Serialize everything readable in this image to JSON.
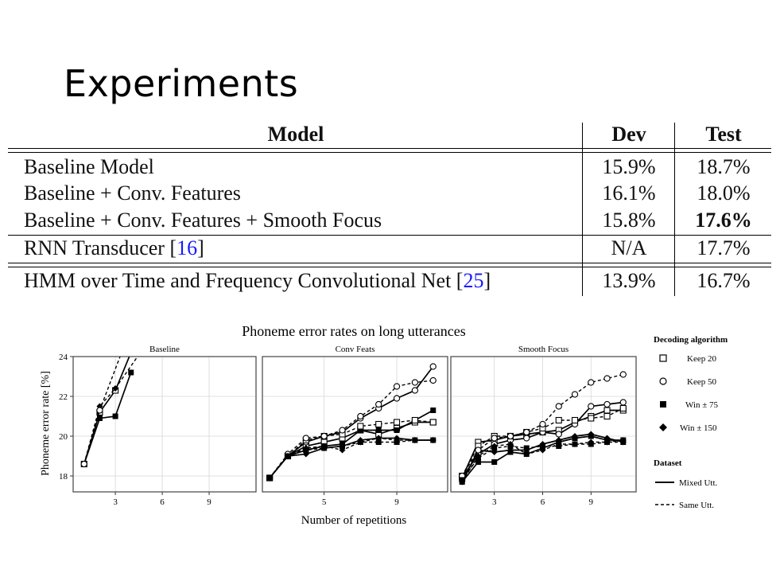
{
  "slide": {
    "title": "Experiments"
  },
  "table": {
    "headers": {
      "model": "Model",
      "dev": "Dev",
      "test": "Test"
    },
    "rows": [
      {
        "model": "Baseline Model",
        "dev": "15.9%",
        "test": "18.7%"
      },
      {
        "model": "Baseline + Conv. Features",
        "dev": "16.1%",
        "test": "18.0%"
      },
      {
        "model": "Baseline + Conv. Features + Smooth Focus",
        "dev": "15.8%",
        "test": "17.6%"
      },
      {
        "model": "RNN Transducer [",
        "cite": "16",
        "close": "]",
        "dev": "N/A",
        "test": "17.7%"
      },
      {
        "model": "HMM over Time and Frequency Convolutional Net [",
        "cite": "25",
        "close": "]",
        "dev": "13.9%",
        "test": "16.7%"
      }
    ]
  },
  "figure": {
    "title": "Phoneme error rates on long utterances",
    "xlabel": "Number of repetitions",
    "ylabel": "Phoneme error rate [%]",
    "legend": {
      "decoding_title": "Decoding algorithm",
      "decoding": [
        "Keep 20",
        "Keep 50",
        "Win ± 75",
        "Win ± 150"
      ],
      "dataset_title": "Dataset",
      "dataset": [
        "Mixed Utt.",
        "Same Utt."
      ]
    }
  },
  "chart_data": [
    {
      "type": "line",
      "title": "Baseline",
      "xlabel": "Number of repetitions",
      "ylabel": "Phoneme error rate [%]",
      "xticks": [
        3,
        6,
        9
      ],
      "yticks": [
        18,
        20,
        22,
        24
      ],
      "xlim": [
        0.3,
        12
      ],
      "ylim": [
        17.2,
        24
      ],
      "grid": true,
      "series": [
        {
          "name": "Keep 20 / Mixed Utt.",
          "marker": "square-open",
          "dash": false,
          "x": [
            1,
            2,
            3,
            4
          ],
          "y": [
            18.6,
            21.2,
            22.3,
            24.2
          ]
        },
        {
          "name": "Win ± 75 / Mixed Utt.",
          "marker": "square",
          "dash": false,
          "x": [
            1,
            2,
            3,
            4
          ],
          "y": [
            18.6,
            20.9,
            21.0,
            23.2
          ]
        },
        {
          "name": "Win ± 150 / Same Utt.",
          "marker": "diamond",
          "dash": true,
          "x": [
            1,
            2,
            3,
            4.6
          ],
          "y": [
            18.6,
            21.5,
            22.4,
            24.2
          ]
        },
        {
          "name": "Keep 50 / Same Utt.",
          "marker": "circle-open",
          "dash": true,
          "x": [
            1,
            2,
            3.4
          ],
          "y": [
            18.6,
            21.3,
            24.2
          ]
        }
      ]
    },
    {
      "type": "line",
      "title": "Conv Feats",
      "xlabel": "Number of repetitions",
      "ylabel": "Phoneme error rate [%]",
      "xticks": [
        5,
        9
      ],
      "yticks": [
        18,
        20,
        22,
        24
      ],
      "xlim": [
        1.6,
        11.8
      ],
      "ylim": [
        17.2,
        24
      ],
      "grid": true,
      "series": [
        {
          "name": "Keep 20 / Mixed Utt.",
          "marker": "square-open",
          "dash": false,
          "x": [
            2,
            3,
            4,
            5,
            6,
            7,
            8,
            9,
            10,
            11
          ],
          "y": [
            17.9,
            19.0,
            19.5,
            19.7,
            19.9,
            20.3,
            20.1,
            20.4,
            20.7,
            20.7
          ]
        },
        {
          "name": "Keep 50 / Mixed Utt.",
          "marker": "circle-open",
          "dash": false,
          "x": [
            2,
            3,
            4,
            5,
            6,
            7,
            8,
            9,
            10,
            11
          ],
          "y": [
            17.9,
            19.0,
            19.7,
            20.0,
            20.2,
            20.9,
            21.4,
            21.9,
            22.3,
            23.5
          ]
        },
        {
          "name": "Win ± 75 / Mixed Utt.",
          "marker": "square",
          "dash": false,
          "x": [
            2,
            3,
            4,
            5,
            6,
            7,
            8,
            9,
            10,
            11
          ],
          "y": [
            17.9,
            19.0,
            19.3,
            19.5,
            19.6,
            20.3,
            20.3,
            20.3,
            20.8,
            21.3
          ]
        },
        {
          "name": "Win ± 150 / Mixed Utt.",
          "marker": "diamond",
          "dash": false,
          "x": [
            2,
            3,
            4,
            5,
            6,
            7,
            8,
            9,
            10,
            11
          ],
          "y": [
            17.9,
            19.0,
            19.1,
            19.4,
            19.5,
            19.8,
            19.9,
            19.9,
            19.8,
            19.8
          ]
        },
        {
          "name": "Keep 20 / Same Utt.",
          "marker": "square-open",
          "dash": true,
          "x": [
            2,
            3,
            4,
            5,
            6,
            7,
            8,
            9,
            10,
            11
          ],
          "y": [
            17.9,
            19.0,
            19.8,
            20.0,
            20.1,
            20.5,
            20.6,
            20.7,
            20.8,
            20.7
          ]
        },
        {
          "name": "Keep 50 / Same Utt.",
          "marker": "circle-open",
          "dash": true,
          "x": [
            2,
            3,
            4,
            5,
            6,
            7,
            8,
            9,
            10,
            11
          ],
          "y": [
            17.9,
            19.1,
            19.9,
            20.0,
            20.3,
            21.0,
            21.6,
            22.5,
            22.7,
            22.8
          ]
        },
        {
          "name": "Win ± 75 / Same Utt.",
          "marker": "square",
          "dash": true,
          "x": [
            2,
            3,
            4,
            5,
            6,
            7,
            8,
            9,
            10,
            11
          ],
          "y": [
            17.9,
            19.0,
            19.3,
            19.4,
            19.5,
            19.7,
            19.7,
            19.7,
            19.8,
            19.8
          ]
        },
        {
          "name": "Win ± 150 / Same Utt.",
          "marker": "diamond",
          "dash": true,
          "x": [
            2,
            3,
            4,
            5,
            6,
            7,
            8,
            9,
            10,
            11
          ],
          "y": [
            17.9,
            19.0,
            19.4,
            19.5,
            19.3,
            19.7,
            19.9,
            19.8,
            19.8,
            19.8
          ]
        }
      ]
    },
    {
      "type": "line",
      "title": "Smooth Focus",
      "xlabel": "Number of repetitions",
      "ylabel": "Phoneme error rate [%]",
      "xticks": [
        3,
        6,
        9
      ],
      "yticks": [
        18,
        20,
        22,
        24
      ],
      "xlim": [
        0.3,
        11.8
      ],
      "ylim": [
        17.2,
        24
      ],
      "grid": true,
      "series": [
        {
          "name": "Keep 20 / Mixed Utt.",
          "marker": "square-open",
          "dash": false,
          "x": [
            1,
            2,
            3,
            4,
            5,
            6,
            7,
            8,
            9,
            10,
            11
          ],
          "y": [
            17.9,
            19.7,
            19.8,
            20.0,
            20.1,
            20.2,
            20.3,
            20.7,
            21.0,
            21.3,
            21.3
          ]
        },
        {
          "name": "Keep 50 / Mixed Utt.",
          "marker": "circle-open",
          "dash": false,
          "x": [
            1,
            2,
            3,
            4,
            5,
            6,
            7,
            8,
            9,
            10,
            11
          ],
          "y": [
            17.9,
            19.1,
            19.6,
            19.8,
            19.9,
            20.2,
            20.1,
            20.6,
            21.5,
            21.6,
            21.7
          ]
        },
        {
          "name": "Win ± 75 / Mixed Utt.",
          "marker": "square",
          "dash": false,
          "x": [
            1,
            2,
            3,
            4,
            5,
            6,
            7,
            8,
            9,
            10,
            11
          ],
          "y": [
            17.7,
            18.7,
            18.7,
            19.2,
            19.1,
            19.4,
            19.7,
            19.9,
            20.0,
            19.8,
            19.8
          ]
        },
        {
          "name": "Win ± 150 / Mixed Utt.",
          "marker": "diamond",
          "dash": false,
          "x": [
            1,
            2,
            3,
            4,
            5,
            6,
            7,
            8,
            9,
            10,
            11
          ],
          "y": [
            17.7,
            19.3,
            19.2,
            19.3,
            19.3,
            19.6,
            19.8,
            20.0,
            20.1,
            19.9,
            19.7
          ]
        },
        {
          "name": "Keep 20 / Same Utt.",
          "marker": "square-open",
          "dash": true,
          "x": [
            1,
            2,
            3,
            4,
            5,
            6,
            7,
            8,
            9,
            10,
            11
          ],
          "y": [
            18.0,
            19.5,
            20.0,
            20.0,
            20.2,
            20.4,
            20.8,
            20.8,
            20.9,
            21.0,
            21.4
          ]
        },
        {
          "name": "Keep 50 / Same Utt.",
          "marker": "circle-open",
          "dash": true,
          "x": [
            1,
            2,
            3,
            4,
            5,
            6,
            7,
            8,
            9,
            10,
            11
          ],
          "y": [
            18.0,
            19.3,
            19.9,
            20.0,
            20.2,
            20.6,
            21.5,
            22.1,
            22.7,
            22.9,
            23.1
          ]
        },
        {
          "name": "Win ± 75 / Same Utt.",
          "marker": "square",
          "dash": true,
          "x": [
            1,
            2,
            3,
            4,
            5,
            6,
            7,
            8,
            9,
            10,
            11
          ],
          "y": [
            17.8,
            18.9,
            19.4,
            19.5,
            19.4,
            19.5,
            19.5,
            19.6,
            19.6,
            19.7,
            19.7
          ]
        },
        {
          "name": "Win ± 150 / Same Utt.",
          "marker": "diamond",
          "dash": true,
          "x": [
            1,
            2,
            3,
            4,
            5,
            6,
            7,
            8,
            9,
            10,
            11
          ],
          "y": [
            17.7,
            19.0,
            19.5,
            19.6,
            19.1,
            19.3,
            19.6,
            19.6,
            19.7,
            19.7,
            19.8
          ]
        }
      ]
    }
  ]
}
